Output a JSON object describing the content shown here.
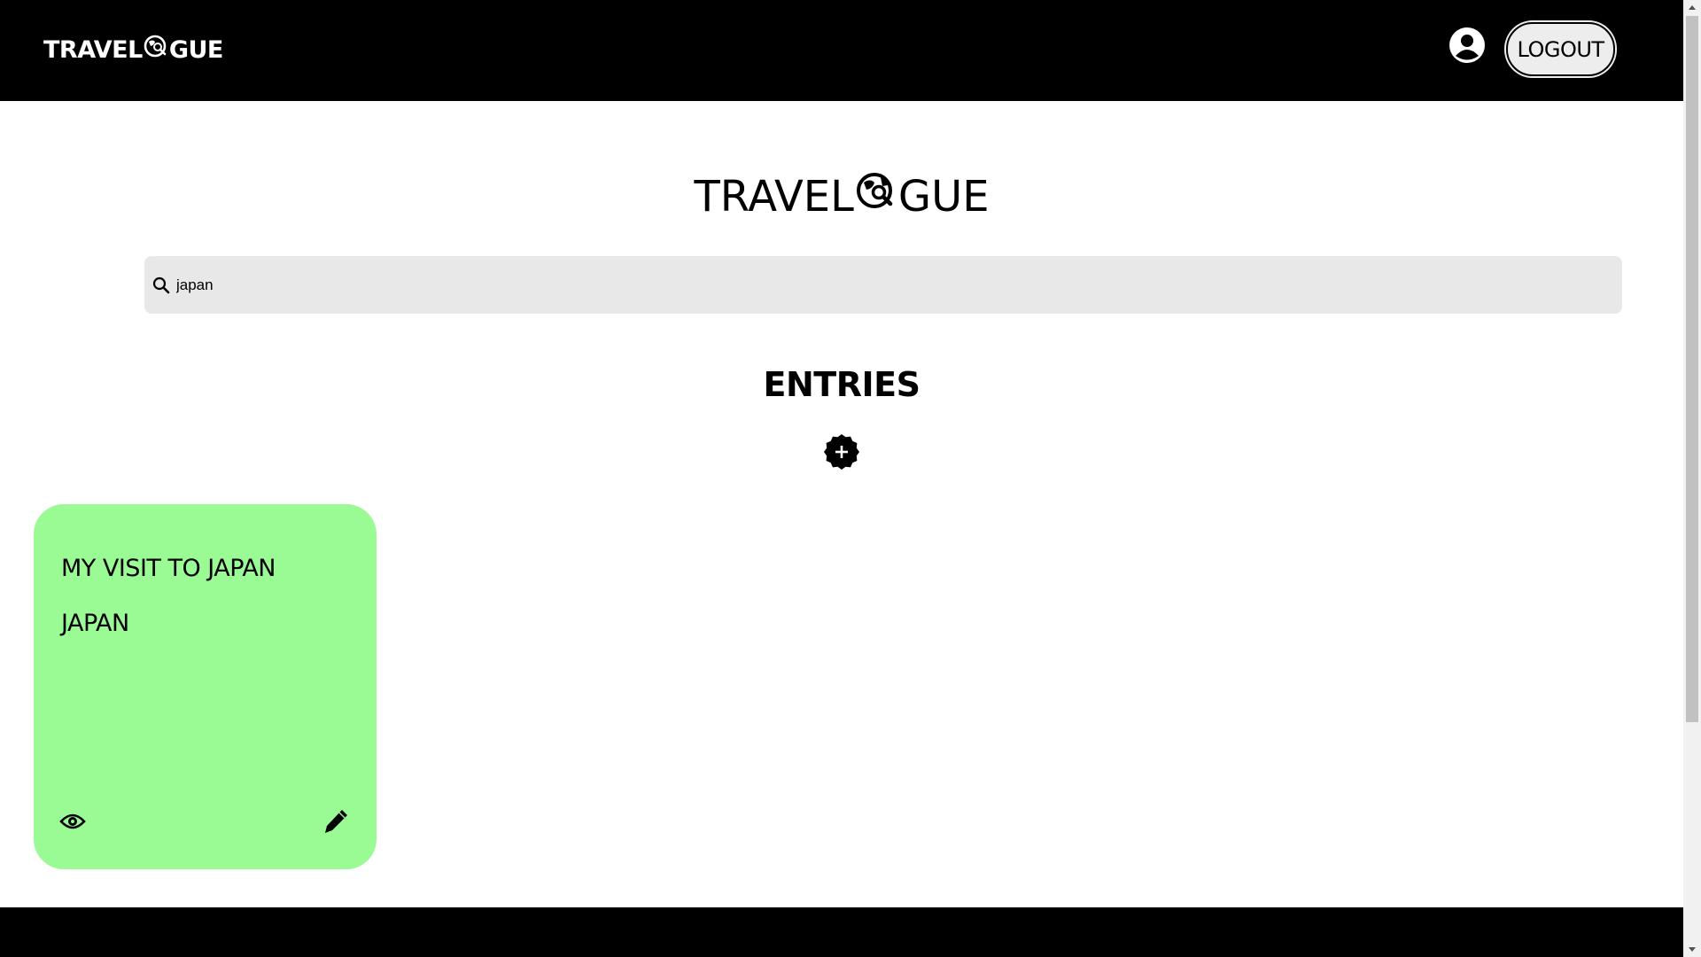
{
  "navbar": {
    "logo_left": "TRAVEL",
    "logo_right": "GUE",
    "profile_icon": "user-circle-icon",
    "logout_label": "LOGOUT"
  },
  "hero": {
    "logo_left": "TRAVEL",
    "logo_right": "GUE",
    "logo_icon": "globe-search-icon"
  },
  "search": {
    "value": "japan",
    "icon": "search-icon"
  },
  "entries": {
    "title": "ENTRIES",
    "add_icon": "plus-badge-icon",
    "items": [
      {
        "title": "MY VISIT TO JAPAN",
        "country": "JAPAN",
        "view_icon": "eye-icon",
        "edit_icon": "pencil-icon",
        "color": "#9afa94"
      }
    ]
  },
  "colors": {
    "navbar_bg": "#000000",
    "card_bg": "#9afa94",
    "search_bg": "#e8e8e8",
    "logout_bg": "#ededed"
  }
}
